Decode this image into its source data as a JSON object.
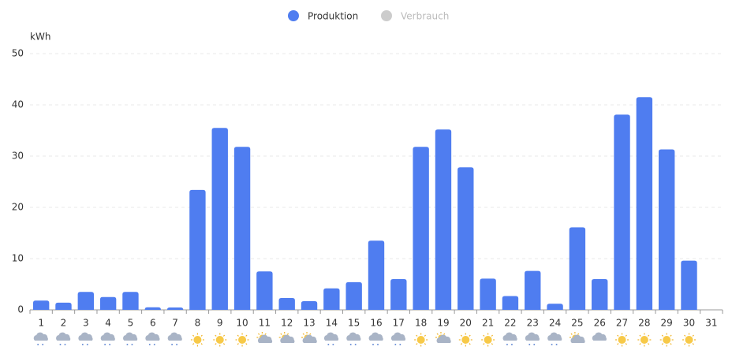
{
  "chart_data": {
    "type": "bar",
    "y_label": "kWh",
    "categories": [
      "1",
      "2",
      "3",
      "4",
      "5",
      "6",
      "7",
      "8",
      "9",
      "10",
      "11",
      "12",
      "13",
      "14",
      "15",
      "16",
      "17",
      "18",
      "19",
      "20",
      "21",
      "22",
      "23",
      "24",
      "25",
      "26",
      "27",
      "28",
      "29",
      "30",
      "31"
    ],
    "series": [
      {
        "name": "Produktion",
        "color": "#4f7df0",
        "hidden": false,
        "values": [
          1.8,
          1.4,
          3.5,
          2.5,
          3.5,
          0.5,
          0.4,
          23.4,
          35.5,
          31.8,
          7.5,
          2.3,
          1.7,
          4.2,
          5.4,
          13.5,
          6,
          31.8,
          35.2,
          27.8,
          6.1,
          2.7,
          7.6,
          1.2,
          16.1,
          6,
          38.1,
          41.5,
          31.3,
          9.6,
          null
        ]
      },
      {
        "name": "Verbrauch",
        "color": "#cccccc",
        "hidden": true,
        "values": [
          null,
          null,
          null,
          null,
          null,
          null,
          null,
          null,
          null,
          null,
          null,
          null,
          null,
          null,
          null,
          null,
          null,
          null,
          null,
          null,
          null,
          null,
          null,
          null,
          null,
          null,
          null,
          null,
          null,
          null,
          null
        ]
      }
    ],
    "ylim": [
      0,
      50
    ],
    "yticks": [
      0,
      10,
      20,
      30,
      40,
      50
    ],
    "grid": true
  }
}
